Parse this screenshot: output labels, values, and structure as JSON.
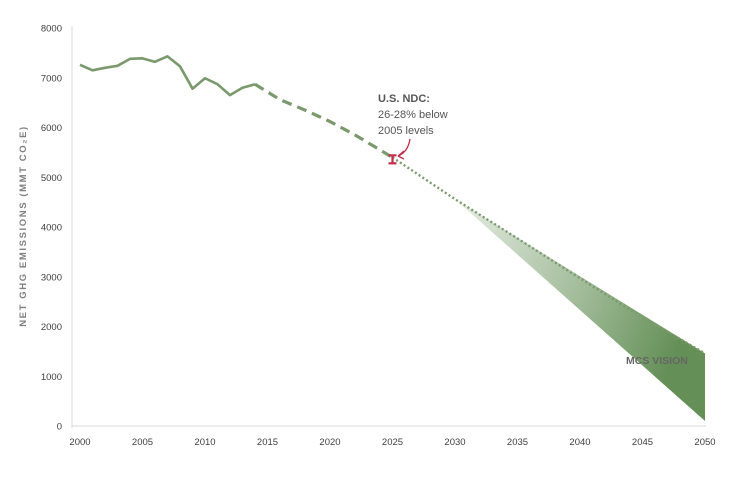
{
  "chart_data": {
    "type": "line",
    "title": "",
    "xlabel": "",
    "ylabel": "NET GHG EMISSIONS (MMT CO₂E)",
    "xlim": [
      2000,
      2050
    ],
    "ylim": [
      0,
      8000
    ],
    "x_ticks": [
      2000,
      2005,
      2010,
      2015,
      2020,
      2025,
      2030,
      2035,
      2040,
      2045,
      2050
    ],
    "y_ticks": [
      0,
      1000,
      2000,
      3000,
      4000,
      5000,
      6000,
      7000,
      8000
    ],
    "grid": false,
    "legend": "none",
    "series": [
      {
        "style": "solid",
        "color": "#7a9a6e",
        "x": [
          2000,
          2001,
          2002,
          2003,
          2004,
          2005,
          2006,
          2007,
          2008,
          2009,
          2010,
          2011,
          2012,
          2013,
          2014
        ],
        "y": [
          7260,
          7150,
          7200,
          7240,
          7380,
          7390,
          7320,
          7430,
          7230,
          6780,
          6990,
          6870,
          6650,
          6800,
          6870
        ]
      },
      {
        "style": "dashed",
        "color": "#7a9a6e",
        "x": [
          2014,
          2016,
          2018,
          2020,
          2022,
          2025
        ],
        "y": [
          6870,
          6560,
          6350,
          6120,
          5850,
          5400
        ]
      },
      {
        "style": "dotted",
        "color": "#7a9a6e",
        "x": [
          2025,
          2030,
          2035,
          2040,
          2045,
          2050
        ],
        "y": [
          5400,
          4560,
          3770,
          2970,
          2180,
          1460
        ]
      }
    ],
    "range_band": {
      "name": "MCS VISION",
      "label": "MCS VISION",
      "color": "#5c8a4e",
      "x": [
        2030,
        2050
      ],
      "upper": [
        4560,
        1460
      ],
      "lower": [
        4560,
        100
      ]
    },
    "target_marker": {
      "x": 2025,
      "low": 5280,
      "high": 5440,
      "color": "#c0304a"
    },
    "annotation": {
      "lines": [
        "U.S. NDC:",
        "26-28% below",
        "2005 levels"
      ]
    }
  }
}
